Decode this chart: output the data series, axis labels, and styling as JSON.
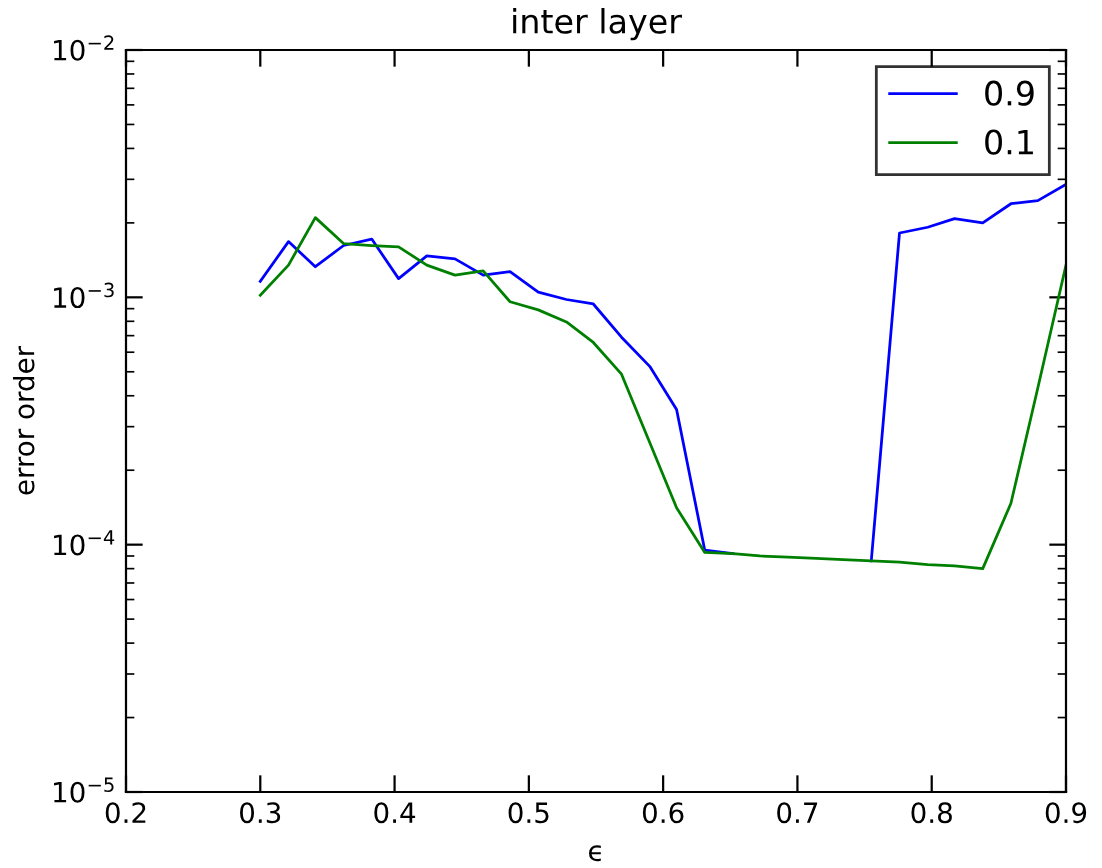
{
  "chart_data": {
    "type": "line",
    "title": "inter layer",
    "xlabel": "ϵ",
    "ylabel": "error order",
    "x": [
      0.3,
      0.321,
      0.341,
      0.362,
      0.383,
      0.403,
      0.424,
      0.445,
      0.466,
      0.486,
      0.507,
      0.528,
      0.548,
      0.569,
      0.59,
      0.61,
      0.631,
      0.652,
      0.672,
      0.693,
      0.714,
      0.734,
      0.755,
      0.776,
      0.797,
      0.817,
      0.838,
      0.859,
      0.879,
      0.9
    ],
    "series": [
      {
        "name": "0.9",
        "color": "#0000ff",
        "values": [
          0.00116,
          0.00168,
          0.00133,
          0.00162,
          0.00172,
          0.00119,
          0.00147,
          0.00143,
          0.00123,
          0.00127,
          0.00105,
          0.00098,
          0.00094,
          0.00069,
          0.000526,
          0.000352,
          9.5e-05,
          9.2e-05,
          null,
          null,
          null,
          null,
          8.6e-05,
          0.00182,
          0.00192,
          0.00208,
          0.002,
          0.00239,
          0.00246,
          0.00286
        ]
      },
      {
        "name": "0.1",
        "color": "#008000",
        "values": [
          0.00102,
          0.00135,
          0.0021,
          0.00165,
          0.00162,
          0.0016,
          0.00135,
          0.00123,
          0.00128,
          0.00096,
          0.00089,
          0.000795,
          0.000657,
          0.000489,
          0.000259,
          0.000141,
          9.3e-05,
          9.2e-05,
          9e-05,
          8.9e-05,
          8.8e-05,
          8.7e-05,
          8.6e-05,
          8.5e-05,
          8.3e-05,
          8.2e-05,
          8e-05,
          0.000147,
          0.00043,
          0.00135
        ]
      }
    ],
    "log": "y",
    "xlim": [
      0.2,
      0.9
    ],
    "xticks": [
      0.2,
      0.3,
      0.4,
      0.5,
      0.6,
      0.7,
      0.8,
      0.9
    ],
    "ylim": [
      1e-05,
      0.01
    ],
    "yticks": [
      {
        "value": 1e-05,
        "label": "10$^{−5}$"
      },
      {
        "value": 0.0001,
        "label": "10$^{−4}$"
      },
      {
        "value": 0.001,
        "label": "10$^{−3}$"
      },
      {
        "value": 0.01,
        "label": "10$^{−2}$"
      }
    ],
    "legend": "top right",
    "grid": false,
    "marker": "none",
    "line_style": "solid"
  }
}
